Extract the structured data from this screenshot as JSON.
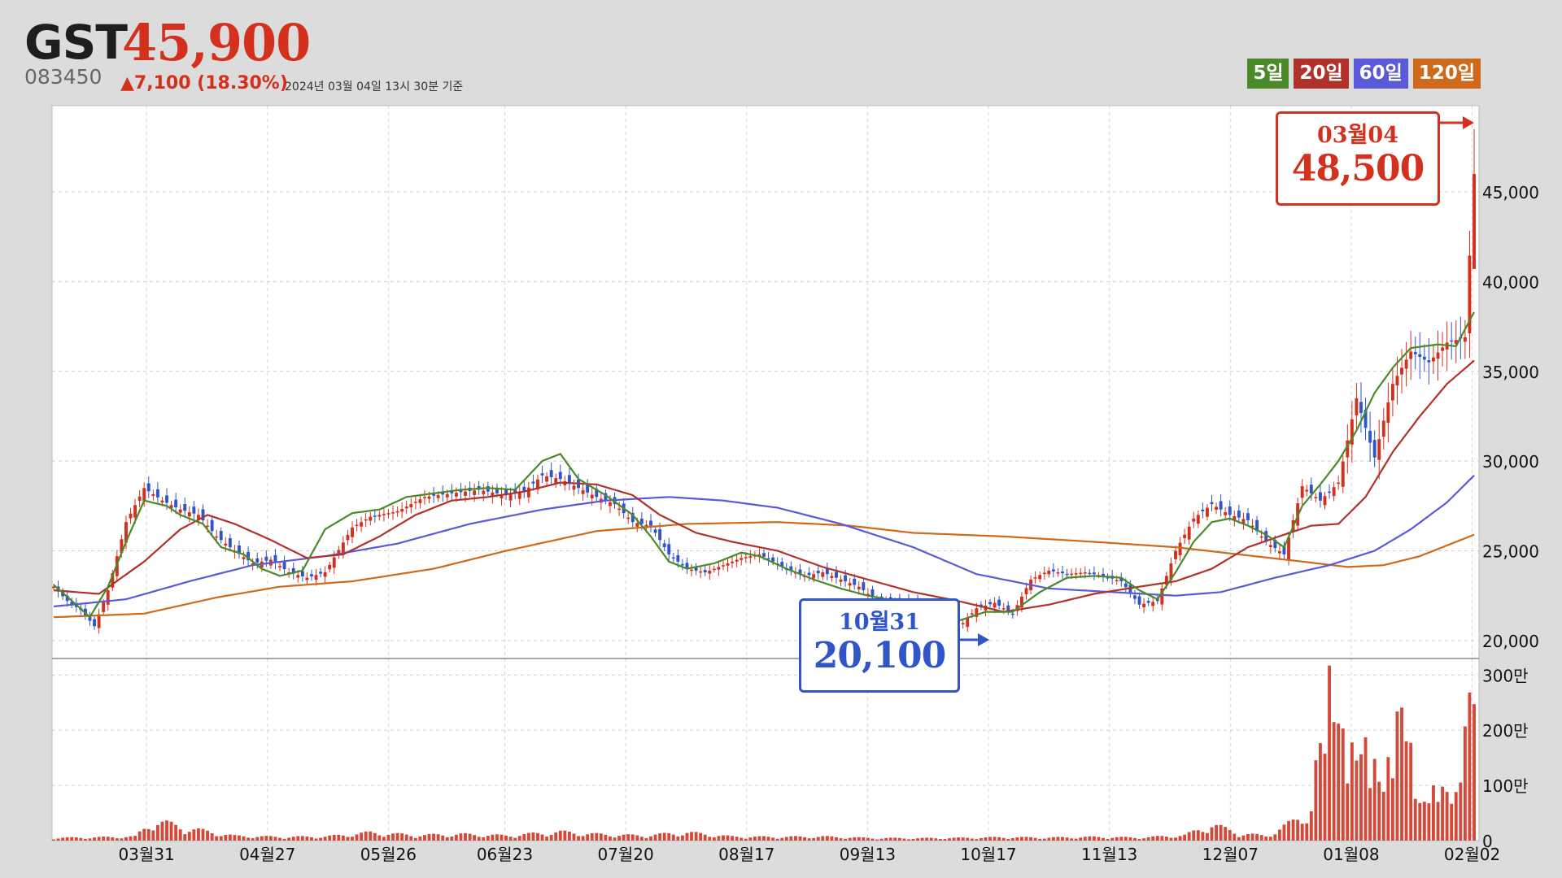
{
  "header": {
    "ticker": "GST",
    "price": "45,900",
    "code": "083450",
    "change": "▲7,100 (18.30%)",
    "as_of": "2024년 03월 04일 13시 30분 기준"
  },
  "legend": [
    {
      "label": "5일",
      "color": "#4a8a28"
    },
    {
      "label": "20일",
      "color": "#b0322a"
    },
    {
      "label": "60일",
      "color": "#5a5ad8"
    },
    {
      "label": "120일",
      "color": "#cf6a1c"
    }
  ],
  "callouts": {
    "high": {
      "date": "03월04",
      "value": "48,500"
    },
    "low": {
      "date": "10월31",
      "value": "20,100"
    }
  },
  "colors": {
    "up": "#d4301e",
    "down": "#2f55c8",
    "volume": "#d44a3a"
  },
  "chart_data": {
    "type": "candlestick",
    "x_tick_labels": [
      "03월31",
      "04월27",
      "05월26",
      "06월23",
      "07월20",
      "08월17",
      "09월13",
      "10월17",
      "11월13",
      "12월07",
      "01월08",
      "02월02"
    ],
    "price_axis": {
      "ticks": [
        "20,000",
        "25,000",
        "30,000",
        "35,000",
        "40,000",
        "45,000"
      ],
      "ylim": [
        19000,
        49800
      ]
    },
    "volume_axis": {
      "ticks": [
        "0",
        "100만",
        "200만",
        "300만"
      ],
      "ylim": [
        0,
        3300000
      ]
    },
    "series": [
      {
        "name": "5일",
        "type": "line",
        "anchors": [
          [
            0,
            23100
          ],
          [
            5,
            22000
          ],
          [
            8,
            21300
          ],
          [
            12,
            23000
          ],
          [
            16,
            25500
          ],
          [
            20,
            27800
          ],
          [
            25,
            27500
          ],
          [
            28,
            27000
          ],
          [
            33,
            26500
          ],
          [
            37,
            25200
          ],
          [
            42,
            24800
          ],
          [
            46,
            24000
          ],
          [
            50,
            23600
          ],
          [
            55,
            23900
          ],
          [
            60,
            26200
          ],
          [
            66,
            27100
          ],
          [
            72,
            27300
          ],
          [
            78,
            28000
          ],
          [
            84,
            28200
          ],
          [
            90,
            28400
          ],
          [
            96,
            28500
          ],
          [
            102,
            28400
          ],
          [
            108,
            30000
          ],
          [
            112,
            30400
          ],
          [
            116,
            29000
          ],
          [
            122,
            28100
          ],
          [
            128,
            27000
          ],
          [
            132,
            25800
          ],
          [
            136,
            24400
          ],
          [
            140,
            24000
          ],
          [
            146,
            24300
          ],
          [
            152,
            24900
          ],
          [
            156,
            24700
          ],
          [
            162,
            24000
          ],
          [
            168,
            23400
          ],
          [
            174,
            22900
          ],
          [
            180,
            22500
          ],
          [
            186,
            22200
          ],
          [
            194,
            21400
          ],
          [
            200,
            21100
          ],
          [
            206,
            21600
          ],
          [
            212,
            21600
          ],
          [
            218,
            22700
          ],
          [
            224,
            23500
          ],
          [
            230,
            23600
          ],
          [
            236,
            23500
          ],
          [
            240,
            22800
          ],
          [
            244,
            22300
          ],
          [
            248,
            23800
          ],
          [
            252,
            25500
          ],
          [
            256,
            26600
          ],
          [
            260,
            26800
          ],
          [
            264,
            26400
          ],
          [
            268,
            25900
          ],
          [
            272,
            25200
          ],
          [
            276,
            27500
          ],
          [
            280,
            28700
          ],
          [
            284,
            30000
          ],
          [
            288,
            31700
          ],
          [
            292,
            33800
          ],
          [
            296,
            35200
          ],
          [
            300,
            36300
          ],
          [
            306,
            36500
          ],
          [
            310,
            36400
          ],
          [
            314,
            38300
          ]
        ]
      },
      {
        "name": "20일",
        "type": "line",
        "anchors": [
          [
            0,
            22800
          ],
          [
            10,
            22600
          ],
          [
            20,
            24400
          ],
          [
            28,
            26200
          ],
          [
            34,
            27000
          ],
          [
            40,
            26500
          ],
          [
            48,
            25600
          ],
          [
            56,
            24600
          ],
          [
            64,
            24800
          ],
          [
            72,
            25800
          ],
          [
            80,
            27000
          ],
          [
            88,
            27800
          ],
          [
            96,
            28000
          ],
          [
            104,
            28300
          ],
          [
            112,
            28800
          ],
          [
            120,
            28700
          ],
          [
            128,
            28100
          ],
          [
            134,
            27000
          ],
          [
            142,
            26000
          ],
          [
            150,
            25500
          ],
          [
            160,
            25000
          ],
          [
            170,
            24100
          ],
          [
            180,
            23400
          ],
          [
            190,
            22700
          ],
          [
            200,
            22200
          ],
          [
            210,
            21600
          ],
          [
            220,
            22000
          ],
          [
            230,
            22600
          ],
          [
            240,
            23000
          ],
          [
            248,
            23300
          ],
          [
            256,
            24000
          ],
          [
            264,
            25200
          ],
          [
            272,
            25900
          ],
          [
            278,
            26400
          ],
          [
            284,
            26500
          ],
          [
            290,
            28000
          ],
          [
            296,
            30500
          ],
          [
            302,
            32500
          ],
          [
            308,
            34300
          ],
          [
            314,
            35600
          ]
        ]
      },
      {
        "name": "60일",
        "type": "line",
        "anchors": [
          [
            0,
            21900
          ],
          [
            16,
            22300
          ],
          [
            30,
            23300
          ],
          [
            44,
            24200
          ],
          [
            60,
            24700
          ],
          [
            76,
            25400
          ],
          [
            92,
            26500
          ],
          [
            108,
            27300
          ],
          [
            122,
            27800
          ],
          [
            136,
            28000
          ],
          [
            148,
            27800
          ],
          [
            160,
            27400
          ],
          [
            174,
            26500
          ],
          [
            190,
            25200
          ],
          [
            204,
            23700
          ],
          [
            220,
            22900
          ],
          [
            234,
            22700
          ],
          [
            248,
            22500
          ],
          [
            258,
            22700
          ],
          [
            270,
            23500
          ],
          [
            282,
            24200
          ],
          [
            292,
            25000
          ],
          [
            300,
            26200
          ],
          [
            308,
            27700
          ],
          [
            314,
            29200
          ]
        ]
      },
      {
        "name": "120일",
        "type": "line",
        "anchors": [
          [
            0,
            21300
          ],
          [
            20,
            21500
          ],
          [
            36,
            22400
          ],
          [
            50,
            23000
          ],
          [
            66,
            23300
          ],
          [
            84,
            24000
          ],
          [
            100,
            25000
          ],
          [
            120,
            26100
          ],
          [
            140,
            26500
          ],
          [
            160,
            26600
          ],
          [
            176,
            26400
          ],
          [
            190,
            26000
          ],
          [
            210,
            25800
          ],
          [
            230,
            25500
          ],
          [
            248,
            25200
          ],
          [
            262,
            24800
          ],
          [
            276,
            24400
          ],
          [
            286,
            24100
          ],
          [
            294,
            24200
          ],
          [
            302,
            24700
          ],
          [
            308,
            25300
          ],
          [
            314,
            25900
          ]
        ]
      },
      {
        "name": "Price",
        "type": "candlestick",
        "anchors": [
          [
            0,
            23000
          ],
          [
            3,
            22200
          ],
          [
            6,
            21700
          ],
          [
            9,
            20800
          ],
          [
            12,
            22800
          ],
          [
            16,
            26600
          ],
          [
            20,
            28500
          ],
          [
            24,
            27800
          ],
          [
            28,
            27300
          ],
          [
            32,
            27000
          ],
          [
            36,
            25800
          ],
          [
            40,
            25000
          ],
          [
            44,
            24300
          ],
          [
            48,
            24500
          ],
          [
            52,
            23800
          ],
          [
            56,
            23500
          ],
          [
            60,
            23800
          ],
          [
            66,
            26300
          ],
          [
            70,
            26900
          ],
          [
            76,
            27200
          ],
          [
            82,
            28000
          ],
          [
            88,
            28200
          ],
          [
            94,
            28400
          ],
          [
            100,
            28100
          ],
          [
            104,
            28300
          ],
          [
            108,
            29200
          ],
          [
            112,
            29000
          ],
          [
            116,
            28500
          ],
          [
            120,
            28000
          ],
          [
            124,
            27600
          ],
          [
            128,
            26600
          ],
          [
            132,
            26400
          ],
          [
            136,
            24800
          ],
          [
            140,
            24000
          ],
          [
            144,
            23800
          ],
          [
            148,
            24200
          ],
          [
            152,
            24600
          ],
          [
            156,
            24800
          ],
          [
            162,
            24000
          ],
          [
            166,
            23600
          ],
          [
            170,
            23800
          ],
          [
            174,
            23400
          ],
          [
            178,
            23000
          ],
          [
            182,
            22200
          ],
          [
            186,
            22100
          ],
          [
            190,
            22000
          ],
          [
            194,
            21300
          ],
          [
            200,
            20700
          ],
          [
            204,
            21800
          ],
          [
            208,
            22100
          ],
          [
            212,
            21500
          ],
          [
            216,
            23400
          ],
          [
            220,
            23900
          ],
          [
            224,
            23700
          ],
          [
            228,
            23800
          ],
          [
            232,
            23600
          ],
          [
            236,
            23300
          ],
          [
            240,
            22000
          ],
          [
            244,
            22200
          ],
          [
            248,
            25000
          ],
          [
            252,
            26800
          ],
          [
            256,
            27600
          ],
          [
            260,
            27000
          ],
          [
            264,
            26700
          ],
          [
            268,
            25500
          ],
          [
            272,
            24800
          ],
          [
            276,
            28600
          ],
          [
            280,
            27800
          ],
          [
            284,
            28800
          ],
          [
            288,
            33500
          ],
          [
            292,
            30200
          ],
          [
            296,
            34300
          ],
          [
            300,
            36100
          ],
          [
            304,
            35500
          ],
          [
            308,
            36600
          ],
          [
            312,
            36900
          ],
          [
            314,
            46000
          ]
        ]
      },
      {
        "name": "Volume",
        "type": "bar",
        "anchors": [
          [
            0,
            40000
          ],
          [
            10,
            50000
          ],
          [
            18,
            60000
          ],
          [
            22,
            300000
          ],
          [
            30,
            180000
          ],
          [
            40,
            70000
          ],
          [
            50,
            55000
          ],
          [
            60,
            60000
          ],
          [
            70,
            120000
          ],
          [
            80,
            80000
          ],
          [
            90,
            95000
          ],
          [
            100,
            75000
          ],
          [
            112,
            130000
          ],
          [
            120,
            95000
          ],
          [
            130,
            75000
          ],
          [
            140,
            120000
          ],
          [
            150,
            60000
          ],
          [
            160,
            55000
          ],
          [
            170,
            60000
          ],
          [
            180,
            40000
          ],
          [
            190,
            35000
          ],
          [
            200,
            40000
          ],
          [
            210,
            50000
          ],
          [
            220,
            45000
          ],
          [
            230,
            55000
          ],
          [
            240,
            45000
          ],
          [
            250,
            80000
          ],
          [
            256,
            240000
          ],
          [
            262,
            110000
          ],
          [
            268,
            70000
          ],
          [
            274,
            280000
          ],
          [
            278,
            500000
          ],
          [
            282,
            2900000
          ],
          [
            286,
            1600000
          ],
          [
            290,
            1750000
          ],
          [
            294,
            1000000
          ],
          [
            298,
            2600000
          ],
          [
            302,
            650000
          ],
          [
            306,
            1000000
          ],
          [
            310,
            800000
          ],
          [
            314,
            3300000
          ]
        ]
      }
    ]
  }
}
